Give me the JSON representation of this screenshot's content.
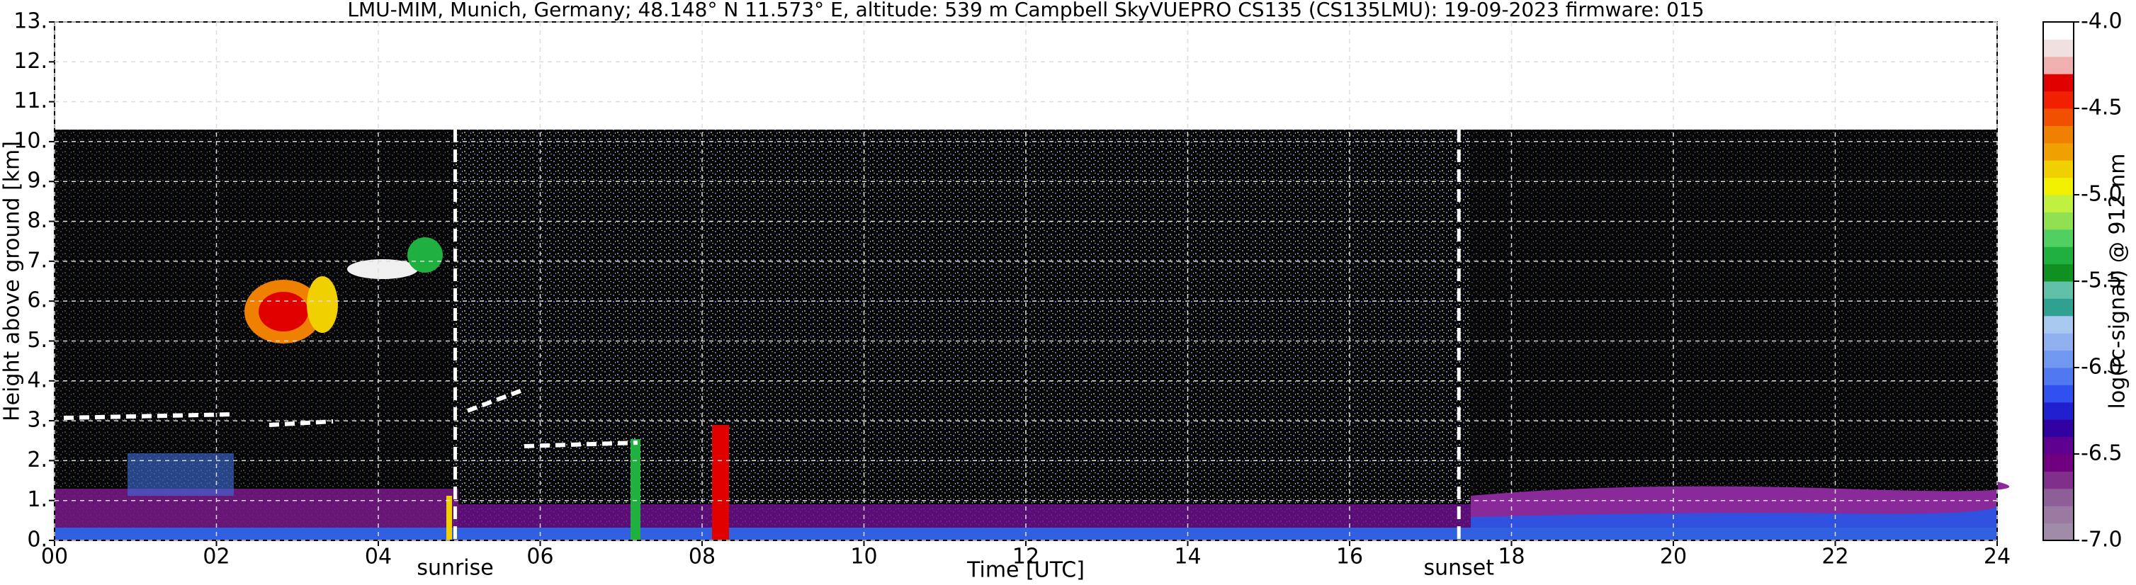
{
  "chart_data": {
    "type": "heatmap",
    "title": "LMU-MIM, Munich, Germany; 48.148° N 11.573° E, altitude: 539 m    Campbell SkyVUEPRO CS135 (CS135LMU): 19-09-2023    firmware: 015",
    "xlabel": "Time [UTC]",
    "ylabel": "Height above ground [km]",
    "xlim": [
      0,
      24
    ],
    "xticks": [
      {
        "value": 0,
        "label": "00"
      },
      {
        "value": 2,
        "label": "02"
      },
      {
        "value": 4,
        "label": "04"
      },
      {
        "value": 6,
        "label": "06"
      },
      {
        "value": 8,
        "label": "08"
      },
      10,
      12,
      14,
      16,
      18,
      20,
      22,
      24
    ],
    "ylim": [
      0,
      13
    ],
    "yticks": [
      {
        "value": 0,
        "label": "0."
      },
      {
        "value": 1,
        "label": "1."
      },
      {
        "value": 2,
        "label": "2."
      },
      {
        "value": 3,
        "label": "3."
      },
      {
        "value": 4,
        "label": "4."
      },
      {
        "value": 5,
        "label": "5."
      },
      {
        "value": 6,
        "label": "6."
      },
      {
        "value": 7,
        "label": "7."
      },
      {
        "value": 8,
        "label": "8."
      },
      {
        "value": 9,
        "label": "9."
      },
      {
        "value": 10,
        "label": "10."
      },
      {
        "value": 11,
        "label": "11."
      },
      {
        "value": 12,
        "label": "12."
      },
      {
        "value": 13,
        "label": "13."
      }
    ],
    "grid": true,
    "annotations": [
      {
        "text": "sunrise",
        "x": 4.95
      },
      {
        "text": "sunset",
        "x": 17.35
      }
    ],
    "colorbar": {
      "label": "log(rc-signal) @ 912 nm",
      "lim": [
        -7.0,
        -4.0
      ],
      "ticks": [
        {
          "value": -7.0,
          "label": "-7.0"
        },
        -6.5,
        {
          "value": -6.0,
          "label": "-6.0"
        },
        -5.5,
        {
          "value": -5.0,
          "label": "-5.0"
        },
        -4.5,
        {
          "value": -4.0,
          "label": "-4.0"
        }
      ],
      "colors": [
        "#a08ca8",
        "#9a7aa0",
        "#8c6096",
        "#80308a",
        "#700080",
        "#600090",
        "#3000a0",
        "#2020d0",
        "#3050f0",
        "#5078f0",
        "#7098f0",
        "#90b0f0",
        "#a8c8f0",
        "#30a090",
        "#60c0a8",
        "#109020",
        "#20b040",
        "#50d060",
        "#90e050",
        "#c0f040",
        "#f0f000",
        "#f0d000",
        "#f0a000",
        "#f08000",
        "#f05000",
        "#f02000",
        "#e00000",
        "#f0b0b0",
        "#f0e0e0",
        "#ffffff"
      ]
    }
  }
}
